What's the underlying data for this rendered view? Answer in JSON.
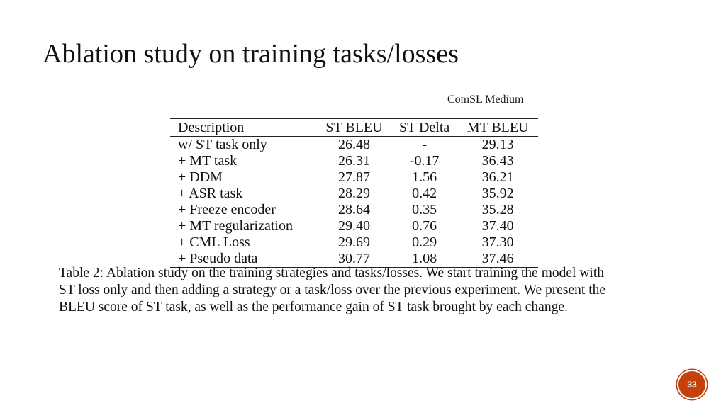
{
  "slide": {
    "title": "Ablation study on training tasks/losses",
    "subtitle": "ComSL Medium",
    "page_number": "33"
  },
  "table": {
    "headers": [
      "Description",
      "ST BLEU",
      "ST Delta",
      "MT BLEU"
    ],
    "rows": [
      [
        "w/ ST task only",
        "26.48",
        "-",
        "29.13"
      ],
      [
        "+ MT task",
        "26.31",
        "-0.17",
        "36.43"
      ],
      [
        "+ DDM",
        "27.87",
        "1.56",
        "36.21"
      ],
      [
        "+ ASR task",
        "28.29",
        "0.42",
        "35.92"
      ],
      [
        "+ Freeze encoder",
        "28.64",
        "0.35",
        "35.28"
      ],
      [
        "+ MT regularization",
        "29.40",
        "0.76",
        "37.40"
      ],
      [
        "+ CML Loss",
        "29.69",
        "0.29",
        "37.30"
      ],
      [
        "+ Pseudo data",
        "30.77",
        "1.08",
        "37.46"
      ]
    ]
  },
  "caption": {
    "lines": [
      "Table 2: Ablation study on the training strategies and tasks/losses. We start training the model with",
      "ST loss only and then adding a strategy or a task/loss over the previous experiment. We present the",
      "BLEU score of ST task, as well as the performance gain of ST task brought by each change."
    ]
  },
  "colors": {
    "page_badge": "#c2410c"
  }
}
